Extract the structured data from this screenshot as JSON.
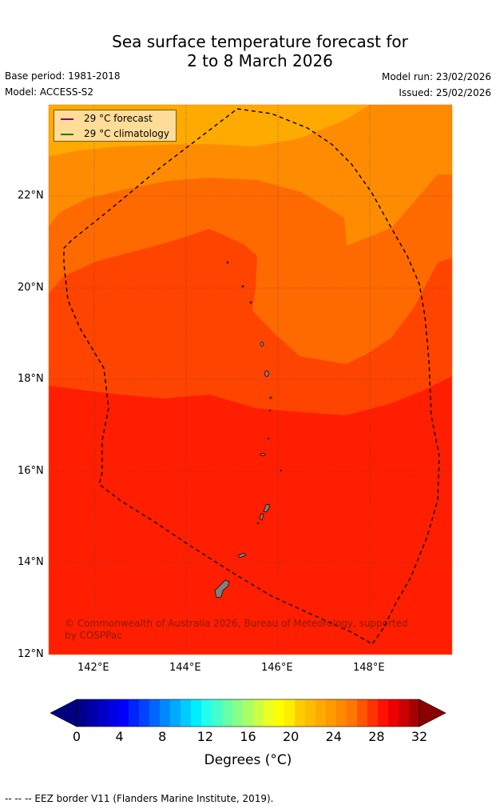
{
  "title_line1": "Sea surface temperature forecast for",
  "title_line2": "2 to 8 March 2026",
  "base_period": "Base period: 1981-2018",
  "model": "Model: ACCESS-S2",
  "model_run": "Model run: 23/02/2026",
  "issued": "Issued: 25/02/2026",
  "legend": {
    "forecast_label": "29 °C  forecast",
    "forecast_color": "#800080",
    "climatology_label": "29 °C  climatology",
    "climatology_color": "#008000"
  },
  "axes": {
    "lat_labels": [
      "22°N",
      "20°N",
      "18°N",
      "16°N",
      "14°N",
      "12°N"
    ],
    "lon_labels": [
      "142°E",
      "144°E",
      "146°E",
      "148°E"
    ]
  },
  "copyright": {
    "line1": "© Commonwealth of Australia 2026, Bureau of Meteorology, supported",
    "line2": "by COSPPac"
  },
  "colorbar": {
    "ticks": [
      "0",
      "4",
      "8",
      "12",
      "16",
      "20",
      "24",
      "28",
      "32"
    ],
    "title": "Degrees (°C)",
    "colors": [
      "#00008b",
      "#0000a8",
      "#0000c6",
      "#0000e4",
      "#0000ff",
      "#0022ff",
      "#0044ff",
      "#0066ff",
      "#0088ff",
      "#00aaff",
      "#00ccff",
      "#00eeff",
      "#22ffee",
      "#44ffcc",
      "#66ffaa",
      "#88ff88",
      "#aaff66",
      "#ccff44",
      "#eeff22",
      "#ffff00",
      "#ffee00",
      "#ffcc00",
      "#ffbb00",
      "#ffaa00",
      "#ff9900",
      "#ff8800",
      "#ff7700",
      "#ff5500",
      "#ff3300",
      "#ff1100",
      "#ee0000",
      "#cc0000",
      "#a80000"
    ],
    "low_color": "#000080",
    "high_color": "#8b0000"
  },
  "map_colors": {
    "c1": "#ffaa00",
    "c2": "#ff8c00",
    "c3": "#ff6a00",
    "c4": "#ff4400",
    "c5": "#ff1e00"
  },
  "footer": "--  --  -- EEZ border V11 (Flanders Marine Institute, 2019)."
}
